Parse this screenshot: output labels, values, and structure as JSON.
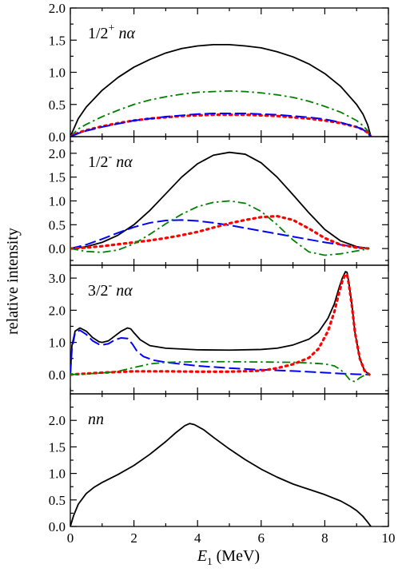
{
  "figure": {
    "ylabel": "relative intensity",
    "xlabel_var": "E",
    "xlabel_sub": "1",
    "xlabel_unit": " (MeV)",
    "xlim": [
      0,
      10
    ],
    "x_ticks": [
      0,
      2,
      4,
      6,
      8,
      10
    ],
    "x_tick_labels": [
      "0",
      "2",
      "4",
      "6",
      "8",
      "10"
    ]
  },
  "chart_data": [
    {
      "type": "line",
      "label_prefix": "1/2",
      "label_sup": "+",
      "label_channel": " nα",
      "ylim": [
        0,
        2.0
      ],
      "y_ticks": [
        0,
        0.5,
        1.0,
        1.5,
        2.0
      ],
      "y_tick_labels": [
        "0.0",
        "0.5",
        "1.0",
        "1.5",
        "2.0"
      ],
      "x": [
        0,
        0.25,
        0.5,
        1.0,
        1.5,
        2.0,
        2.5,
        3.0,
        3.5,
        4.0,
        4.5,
        5.0,
        5.5,
        6.0,
        6.5,
        7.0,
        7.5,
        8.0,
        8.5,
        9.0,
        9.2,
        9.35,
        9.45
      ],
      "series": [
        {
          "style": "solid",
          "color": "#000000",
          "values": [
            0,
            0.28,
            0.46,
            0.72,
            0.92,
            1.08,
            1.2,
            1.3,
            1.37,
            1.41,
            1.43,
            1.43,
            1.41,
            1.38,
            1.32,
            1.24,
            1.13,
            0.98,
            0.78,
            0.5,
            0.35,
            0.18,
            0
          ]
        },
        {
          "style": "dashdot",
          "color": "#008000",
          "values": [
            0,
            0.12,
            0.19,
            0.31,
            0.41,
            0.5,
            0.57,
            0.62,
            0.66,
            0.69,
            0.7,
            0.71,
            0.7,
            0.68,
            0.65,
            0.61,
            0.55,
            0.47,
            0.38,
            0.25,
            0.17,
            0.09,
            0
          ]
        },
        {
          "style": "dotted",
          "color": "#ff0000",
          "values": [
            0,
            0.06,
            0.1,
            0.16,
            0.21,
            0.25,
            0.28,
            0.3,
            0.32,
            0.33,
            0.34,
            0.34,
            0.34,
            0.33,
            0.32,
            0.3,
            0.28,
            0.25,
            0.21,
            0.15,
            0.11,
            0.06,
            0
          ]
        },
        {
          "style": "dashed",
          "color": "#0000ff",
          "values": [
            0,
            0.05,
            0.09,
            0.15,
            0.2,
            0.25,
            0.28,
            0.31,
            0.33,
            0.35,
            0.36,
            0.36,
            0.36,
            0.35,
            0.34,
            0.32,
            0.3,
            0.27,
            0.22,
            0.15,
            0.11,
            0.06,
            0
          ]
        }
      ]
    },
    {
      "type": "line",
      "label_prefix": "1/2",
      "label_sup": "-",
      "label_channel": " nα",
      "ylim": [
        -0.35,
        2.35
      ],
      "y_ticks": [
        0,
        0.5,
        1.0,
        1.5,
        2.0
      ],
      "y_tick_labels": [
        "0.0",
        "0.5",
        "1.0",
        "1.5",
        "2.0"
      ],
      "x": [
        0,
        0.5,
        1.0,
        1.5,
        2.0,
        2.5,
        3.0,
        3.5,
        4.0,
        4.5,
        5.0,
        5.5,
        6.0,
        6.5,
        7.0,
        7.5,
        8.0,
        8.5,
        9.0,
        9.4
      ],
      "series": [
        {
          "style": "solid",
          "color": "#000000",
          "values": [
            0,
            0.04,
            0.13,
            0.28,
            0.5,
            0.8,
            1.15,
            1.5,
            1.78,
            1.96,
            2.02,
            1.98,
            1.8,
            1.5,
            1.13,
            0.75,
            0.4,
            0.16,
            0.04,
            0
          ]
        },
        {
          "style": "dashed",
          "color": "#0000ff",
          "values": [
            0,
            0.08,
            0.2,
            0.33,
            0.45,
            0.54,
            0.59,
            0.6,
            0.58,
            0.54,
            0.49,
            0.43,
            0.37,
            0.31,
            0.25,
            0.19,
            0.13,
            0.08,
            0.03,
            0
          ]
        },
        {
          "style": "dotted",
          "color": "#ff0000",
          "values": [
            0,
            0.02,
            0.05,
            0.09,
            0.13,
            0.17,
            0.22,
            0.28,
            0.35,
            0.44,
            0.53,
            0.6,
            0.66,
            0.68,
            0.6,
            0.42,
            0.22,
            0.08,
            0.02,
            0
          ]
        },
        {
          "style": "dashdot",
          "color": "#008000",
          "values": [
            0,
            -0.06,
            -0.08,
            -0.03,
            0.1,
            0.3,
            0.52,
            0.72,
            0.88,
            0.97,
            1.0,
            0.95,
            0.78,
            0.5,
            0.18,
            -0.07,
            -0.14,
            -0.11,
            -0.05,
            0
          ]
        }
      ]
    },
    {
      "type": "line",
      "label_prefix": "3/2",
      "label_sup": "-",
      "label_channel": " nα",
      "ylim": [
        -0.6,
        3.4
      ],
      "y_ticks": [
        0,
        1.0,
        2.0,
        3.0
      ],
      "y_tick_labels": [
        "0.0",
        "1.0",
        "2.0",
        "3.0"
      ],
      "series": [
        {
          "style": "solid",
          "color": "#000000",
          "x": [
            0,
            0.05,
            0.15,
            0.3,
            0.5,
            0.7,
            0.9,
            1.0,
            1.2,
            1.4,
            1.6,
            1.8,
            1.9,
            2.0,
            2.2,
            2.5,
            3.0,
            4.0,
            5.0,
            6.0,
            6.5,
            7.0,
            7.5,
            7.8,
            8.1,
            8.3,
            8.45,
            8.55,
            8.65,
            8.7,
            8.75,
            8.85,
            8.95,
            9.1,
            9.25,
            9.4
          ],
          "values": [
            0,
            0.9,
            1.35,
            1.45,
            1.35,
            1.15,
            1.02,
            1.0,
            1.05,
            1.2,
            1.35,
            1.45,
            1.42,
            1.3,
            1.08,
            0.9,
            0.82,
            0.77,
            0.76,
            0.78,
            0.82,
            0.92,
            1.1,
            1.32,
            1.75,
            2.2,
            2.7,
            3.0,
            3.2,
            3.18,
            2.9,
            2.2,
            1.3,
            0.5,
            0.12,
            0
          ]
        },
        {
          "style": "dashed",
          "color": "#0000ff",
          "x": [
            0,
            0.05,
            0.15,
            0.3,
            0.5,
            0.7,
            0.9,
            1.0,
            1.2,
            1.4,
            1.6,
            1.8,
            1.95,
            2.1,
            2.3,
            2.6,
            3.0,
            4.0,
            5.0,
            6.0,
            7.0,
            8.0,
            8.5,
            9.0,
            9.4
          ],
          "values": [
            0,
            0.8,
            1.3,
            1.38,
            1.25,
            1.05,
            0.94,
            0.92,
            0.96,
            1.08,
            1.14,
            1.12,
            0.95,
            0.72,
            0.56,
            0.45,
            0.38,
            0.27,
            0.2,
            0.15,
            0.11,
            0.06,
            0.03,
            0.01,
            0
          ]
        },
        {
          "style": "dotted",
          "color": "#ff0000",
          "x": [
            0,
            0.5,
            1.0,
            1.5,
            2.0,
            2.5,
            3.0,
            4.0,
            5.0,
            6.0,
            6.5,
            7.0,
            7.5,
            7.8,
            8.1,
            8.3,
            8.45,
            8.55,
            8.65,
            8.7,
            8.75,
            8.85,
            8.95,
            9.1,
            9.25,
            9.4
          ],
          "values": [
            0,
            0.03,
            0.06,
            0.08,
            0.1,
            0.1,
            0.1,
            0.09,
            0.09,
            0.12,
            0.2,
            0.32,
            0.52,
            0.8,
            1.35,
            1.95,
            2.55,
            2.9,
            3.12,
            3.1,
            2.85,
            2.15,
            1.3,
            0.5,
            0.12,
            0
          ]
        },
        {
          "style": "dashdot",
          "color": "#008000",
          "x": [
            0,
            0.5,
            1.0,
            1.5,
            2.0,
            2.5,
            3.0,
            4.0,
            5.0,
            6.0,
            7.0,
            7.5,
            8.0,
            8.3,
            8.5,
            8.65,
            8.8,
            8.95,
            9.1,
            9.25,
            9.4
          ],
          "values": [
            0,
            0.02,
            0.05,
            0.1,
            0.22,
            0.33,
            0.38,
            0.4,
            0.4,
            0.39,
            0.38,
            0.36,
            0.33,
            0.27,
            0.15,
            0.0,
            -0.18,
            -0.22,
            -0.1,
            -0.02,
            0
          ]
        }
      ]
    },
    {
      "type": "line",
      "label_channel": "nn",
      "ylim": [
        0,
        2.5
      ],
      "y_ticks": [
        0,
        0.5,
        1.0,
        1.5,
        2.0
      ],
      "y_tick_labels": [
        "0.0",
        "0.5",
        "1.0",
        "1.5",
        "2.0"
      ],
      "x": [
        0,
        0.1,
        0.25,
        0.5,
        0.75,
        1.0,
        1.5,
        2.0,
        2.5,
        3.0,
        3.3,
        3.6,
        3.75,
        3.9,
        4.2,
        4.5,
        5.0,
        5.5,
        6.0,
        6.5,
        7.0,
        7.5,
        8.0,
        8.5,
        8.8,
        9.0,
        9.2,
        9.35,
        9.45
      ],
      "series": [
        {
          "style": "solid",
          "color": "#000000",
          "values": [
            0,
            0.2,
            0.42,
            0.62,
            0.74,
            0.83,
            0.98,
            1.15,
            1.36,
            1.6,
            1.76,
            1.9,
            1.94,
            1.92,
            1.82,
            1.68,
            1.46,
            1.26,
            1.08,
            0.93,
            0.8,
            0.7,
            0.6,
            0.48,
            0.38,
            0.3,
            0.19,
            0.08,
            0
          ]
        }
      ]
    }
  ]
}
